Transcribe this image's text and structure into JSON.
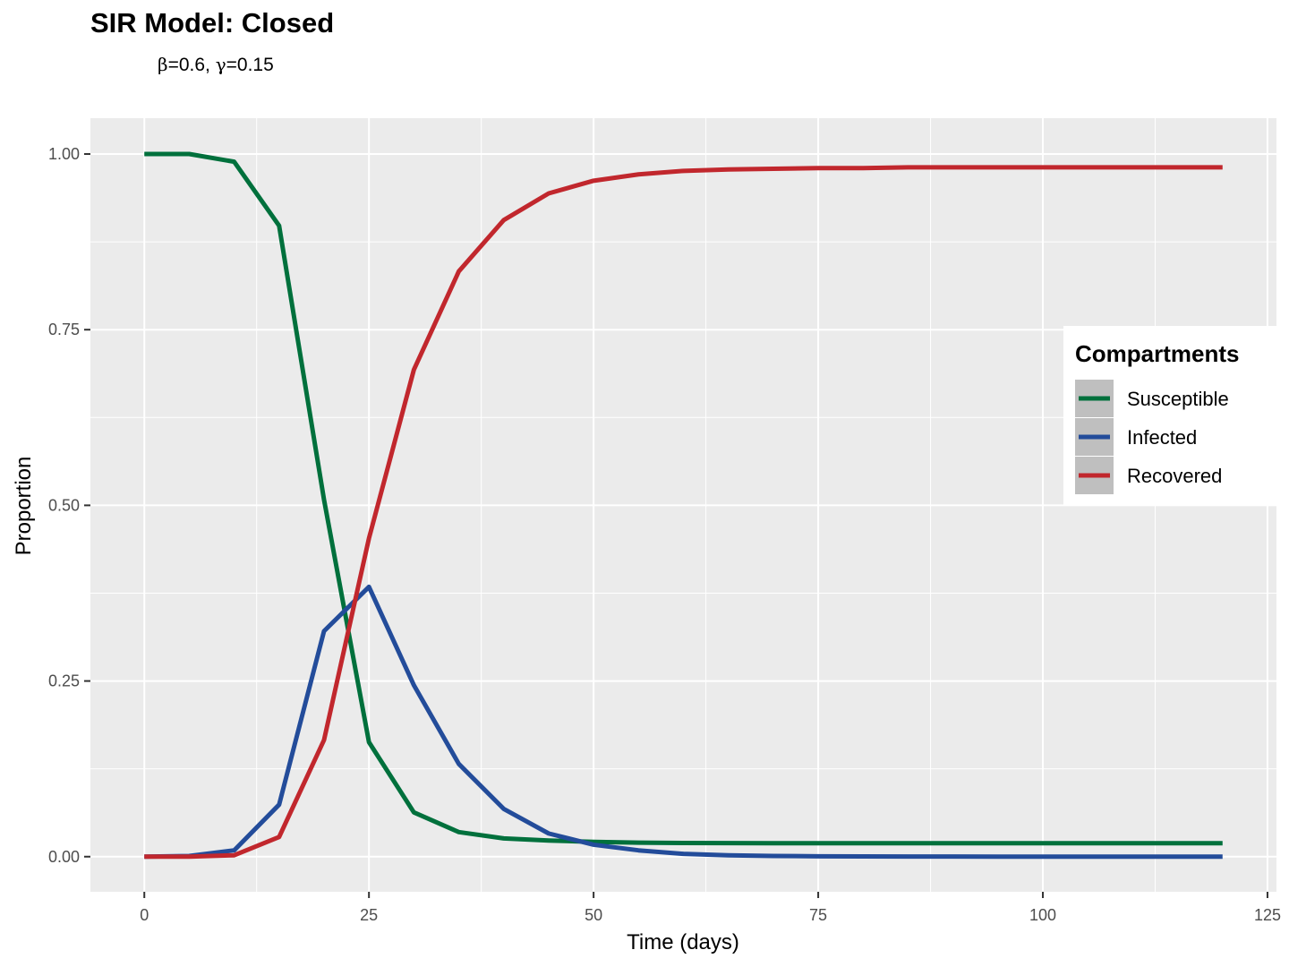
{
  "chart_data": {
    "type": "line",
    "title": "SIR Model: Closed",
    "subtitle": {
      "beta_symbol": "β",
      "beta_value": "=0.6,",
      "gamma_symbol": "γ",
      "gamma_value": "=0.15"
    },
    "xlabel": "Time (days)",
    "ylabel": "Proportion",
    "xlim": [
      -6,
      126
    ],
    "ylim": [
      -0.05,
      1.051
    ],
    "x_ticks": [
      0,
      25,
      50,
      75,
      100,
      125
    ],
    "x_tick_labels": [
      "0",
      "25",
      "50",
      "75",
      "100",
      "125"
    ],
    "y_ticks": [
      0,
      0.25,
      0.5,
      0.75,
      1.0
    ],
    "y_tick_labels": [
      "0.00",
      "0.25",
      "0.50",
      "0.75",
      "1.00"
    ],
    "grid": true,
    "background": "#ebebeb",
    "legend": {
      "title": "Compartments",
      "position": "right"
    },
    "x": [
      0,
      5,
      10,
      15,
      20,
      25,
      30,
      35,
      40,
      45,
      50,
      55,
      60,
      65,
      70,
      75,
      80,
      85,
      90,
      95,
      100,
      105,
      110,
      115,
      120
    ],
    "series": [
      {
        "name": "Susceptible",
        "color": "#00703c",
        "values": [
          1.0,
          1.0,
          0.989,
          0.898,
          0.508,
          0.163,
          0.063,
          0.035,
          0.026,
          0.023,
          0.021,
          0.02,
          0.0195,
          0.0193,
          0.0192,
          0.0192,
          0.0192,
          0.0192,
          0.0192,
          0.0192,
          0.0192,
          0.0192,
          0.0192,
          0.0192,
          0.0192
        ]
      },
      {
        "name": "Infected",
        "color": "#234c9a",
        "values": [
          0.0,
          0.001,
          0.009,
          0.074,
          0.321,
          0.384,
          0.244,
          0.132,
          0.068,
          0.033,
          0.017,
          0.009,
          0.004,
          0.002,
          0.001,
          0.0005,
          0.0003,
          0.0002,
          0.0001,
          0.0,
          0.0,
          0.0,
          0.0,
          0.0,
          0.0
        ]
      },
      {
        "name": "Recovered",
        "color": "#c1272d",
        "values": [
          0.0,
          0.0,
          0.002,
          0.028,
          0.166,
          0.453,
          0.693,
          0.833,
          0.906,
          0.944,
          0.962,
          0.971,
          0.976,
          0.978,
          0.979,
          0.98,
          0.98,
          0.981,
          0.981,
          0.981,
          0.981,
          0.981,
          0.981,
          0.981,
          0.981
        ]
      }
    ]
  }
}
